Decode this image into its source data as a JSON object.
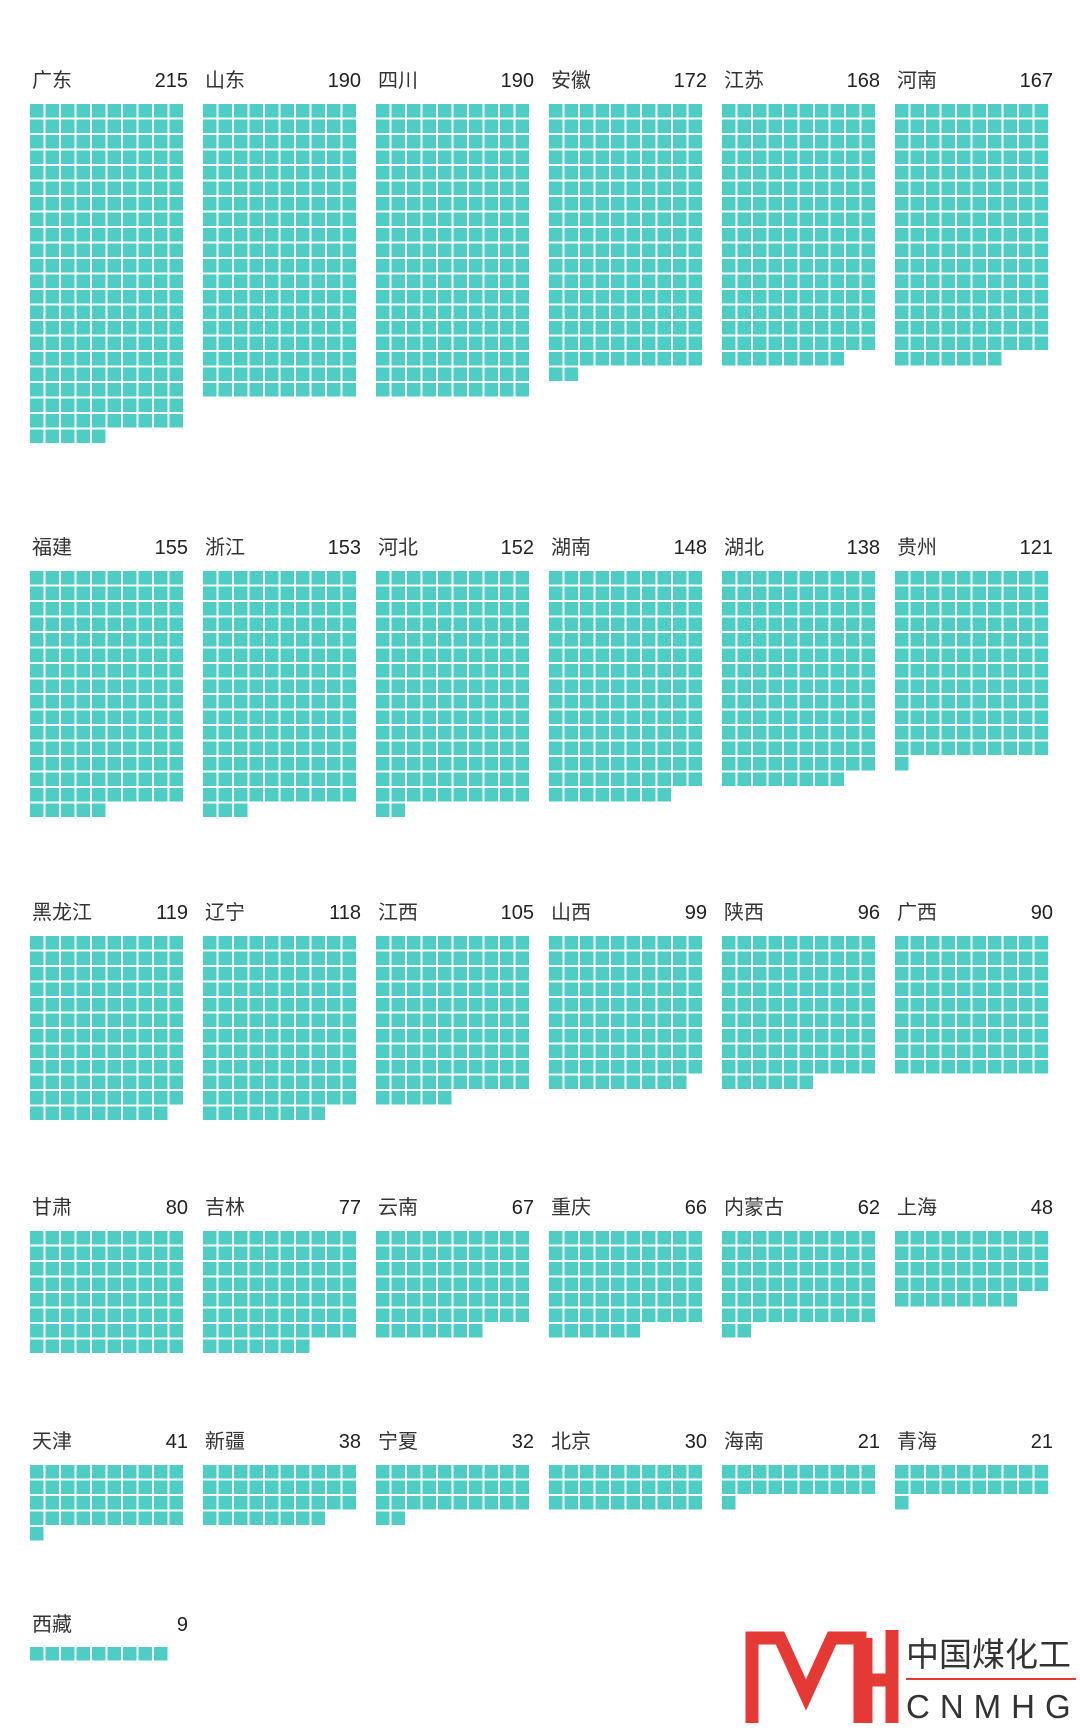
{
  "chart_data": {
    "type": "waffle",
    "title": "",
    "unit_per_square": 1,
    "squares_per_row": 10,
    "color": "#4ECDC4",
    "categories": [
      "广东",
      "山东",
      "四川",
      "安徽",
      "江苏",
      "河南",
      "福建",
      "浙江",
      "河北",
      "湖南",
      "湖北",
      "贵州",
      "黑龙江",
      "辽宁",
      "江西",
      "山西",
      "陕西",
      "广西",
      "甘肃",
      "吉林",
      "云南",
      "重庆",
      "内蒙古",
      "上海",
      "天津",
      "新疆",
      "宁夏",
      "北京",
      "海南",
      "青海",
      "西藏"
    ],
    "values": [
      215,
      190,
      190,
      172,
      168,
      167,
      155,
      153,
      152,
      148,
      138,
      121,
      119,
      118,
      105,
      99,
      96,
      90,
      80,
      77,
      67,
      66,
      62,
      48,
      41,
      38,
      32,
      30,
      21,
      21,
      9
    ]
  },
  "logo": {
    "mark_color": "#E53935",
    "name_cn": "中国煤化工",
    "name_en": "CNMHG"
  }
}
